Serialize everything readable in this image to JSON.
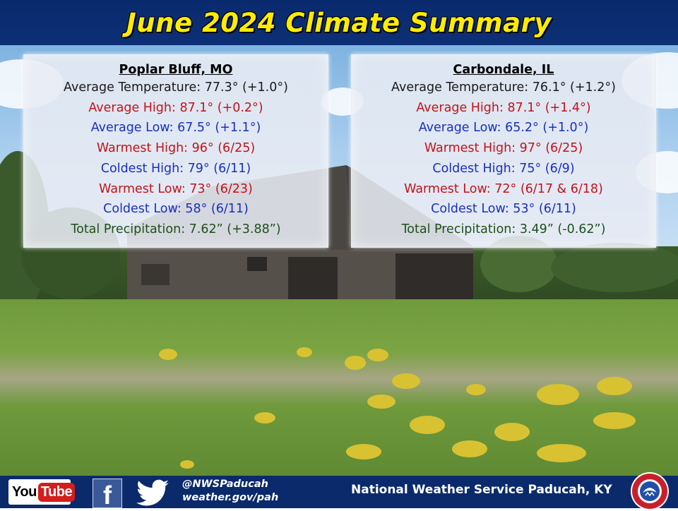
{
  "title": "June 2024 Climate Summary",
  "panels": {
    "left": {
      "heading": "Poplar Bluff, MO",
      "avg_temp": "Average Temperature: 77.3° (+1.0°)",
      "avg_high": "Average High: 87.1° (+0.2°)",
      "avg_low": "Average Low: 67.5° (+1.1°)",
      "warmest_high": "Warmest High: 96° (6/25)",
      "coldest_high": "Coldest High: 79° (6/11)",
      "warmest_low": "Warmest Low: 73° (6/23)",
      "coldest_low": "Coldest Low: 58° (6/11)",
      "total_precip": "Total Precipitation: 7.62” (+3.88”)"
    },
    "right": {
      "heading": "Carbondale, IL",
      "avg_temp": "Average Temperature: 76.1° (+1.2°)",
      "avg_high": "Average High: 87.1° (+1.4°)",
      "avg_low": "Average Low: 65.2° (+1.0°)",
      "warmest_high": "Warmest High: 97° (6/25)",
      "coldest_high": "Coldest High: 75° (6/9)",
      "warmest_low": "Warmest Low: 72° (6/17 & 6/18)",
      "coldest_low": "Coldest Low: 53° (6/11)",
      "total_precip": "Total Precipitation: 3.49” (-0.62”)"
    }
  },
  "footer": {
    "youtube_you": "You",
    "youtube_tube": "Tube",
    "facebook_letter": "f",
    "handle": "@NWSPaducah",
    "website": "weather.gov/pah",
    "office": "National Weather Service Paducah, KY"
  },
  "icons": [
    "youtube-icon",
    "facebook-icon",
    "twitter-icon",
    "nws-logo-icon"
  ],
  "colors": {
    "title_bg": "#0a2a6e",
    "title_text": "#ffec00",
    "temp_high": "#c0141a",
    "temp_low": "#1a2fc0",
    "precip": "#1f4f1a"
  }
}
